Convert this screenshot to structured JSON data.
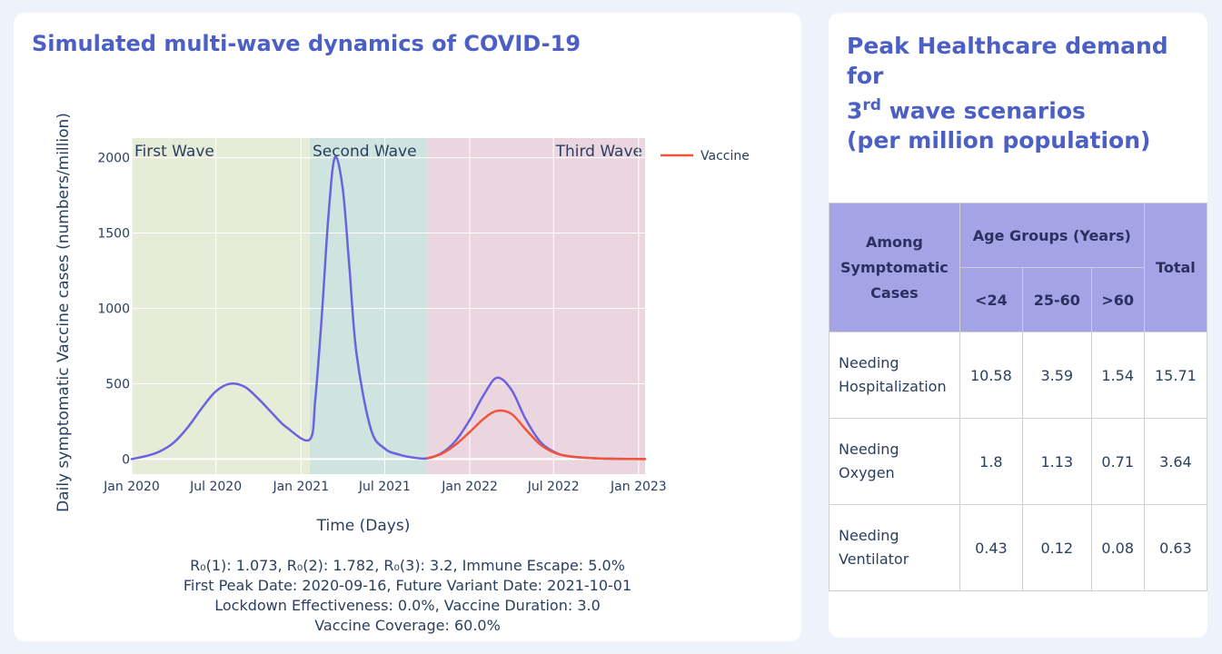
{
  "chart_panel": {
    "title": "Simulated multi-wave dynamics of COVID-19",
    "annotation_lines": [
      "R₀(1): 1.073, R₀(2): 1.782, R₀(3): 3.2, Immune Escape: 5.0%",
      "First Peak Date: 2020-09-16, Future Variant Date: 2021-10-01",
      "Lockdown Effectiveness: 0.0%, Vaccine Duration: 3.0",
      "Vaccine Coverage: 60.0%"
    ]
  },
  "chart_data": {
    "type": "line",
    "xlabel": "Time (Days)",
    "ylabel": "Daily symptomatic Vaccine cases (numbers/million)",
    "xlim": [
      "2020-01-01",
      "2023-01-15"
    ],
    "ylim": [
      -100,
      2130
    ],
    "y_ticks": [
      0,
      500,
      1000,
      1500,
      2000
    ],
    "x_ticks": [
      {
        "date": "2020-01-01",
        "label": "Jan 2020"
      },
      {
        "date": "2020-07-01",
        "label": "Jul 2020"
      },
      {
        "date": "2021-01-01",
        "label": "Jan 2021"
      },
      {
        "date": "2021-07-01",
        "label": "Jul 2021"
      },
      {
        "date": "2022-01-01",
        "label": "Jan 2022"
      },
      {
        "date": "2022-07-01",
        "label": "Jul 2022"
      },
      {
        "date": "2023-01-01",
        "label": "Jan 2023"
      }
    ],
    "grid": true,
    "legend_position": "top-right",
    "wave_regions": [
      {
        "label": "First Wave",
        "start": "2020-01-01",
        "end": "2021-01-20",
        "color": "#e6ecd8"
      },
      {
        "label": "Second Wave",
        "start": "2021-01-20",
        "end": "2021-10-01",
        "color": "#cfe3df"
      },
      {
        "label": "Third Wave",
        "start": "2021-10-01",
        "end": "2023-01-15",
        "color": "#ebd6df"
      }
    ],
    "series": [
      {
        "name": "",
        "color": "#6b62e0",
        "points": [
          [
            "2020-01-01",
            0
          ],
          [
            "2020-02-01",
            20
          ],
          [
            "2020-03-01",
            50
          ],
          [
            "2020-04-01",
            110
          ],
          [
            "2020-05-01",
            210
          ],
          [
            "2020-06-01",
            340
          ],
          [
            "2020-07-01",
            450
          ],
          [
            "2020-08-01",
            500
          ],
          [
            "2020-09-01",
            480
          ],
          [
            "2020-10-01",
            400
          ],
          [
            "2020-11-01",
            300
          ],
          [
            "2020-12-01",
            210
          ],
          [
            "2021-01-20",
            130
          ],
          [
            "2021-02-01",
            400
          ],
          [
            "2021-02-15",
            950
          ],
          [
            "2021-03-01",
            1600
          ],
          [
            "2021-03-15",
            2000
          ],
          [
            "2021-04-01",
            1800
          ],
          [
            "2021-04-15",
            1300
          ],
          [
            "2021-05-01",
            700
          ],
          [
            "2021-06-01",
            200
          ],
          [
            "2021-07-01",
            70
          ],
          [
            "2021-08-01",
            30
          ],
          [
            "2021-09-01",
            10
          ],
          [
            "2021-10-01",
            5
          ],
          [
            "2021-11-01",
            40
          ],
          [
            "2021-12-01",
            120
          ],
          [
            "2022-01-01",
            260
          ],
          [
            "2022-02-01",
            430
          ],
          [
            "2022-03-01",
            540
          ],
          [
            "2022-04-01",
            460
          ],
          [
            "2022-05-01",
            270
          ],
          [
            "2022-06-01",
            120
          ],
          [
            "2022-07-01",
            50
          ],
          [
            "2022-08-01",
            20
          ],
          [
            "2022-10-01",
            5
          ],
          [
            "2023-01-15",
            0
          ]
        ]
      },
      {
        "name": "Vaccine",
        "color": "#ef553b",
        "points": [
          [
            "2021-10-01",
            5
          ],
          [
            "2021-11-01",
            35
          ],
          [
            "2021-12-01",
            95
          ],
          [
            "2022-01-01",
            180
          ],
          [
            "2022-02-01",
            270
          ],
          [
            "2022-03-01",
            320
          ],
          [
            "2022-04-01",
            300
          ],
          [
            "2022-05-01",
            200
          ],
          [
            "2022-06-01",
            100
          ],
          [
            "2022-07-01",
            45
          ],
          [
            "2022-08-01",
            20
          ],
          [
            "2022-10-01",
            5
          ],
          [
            "2023-01-15",
            0
          ]
        ]
      }
    ]
  },
  "table_panel": {
    "title_line1": "Peak Healthcare demand for",
    "title_line2_num": "3",
    "title_line2_sup": "rd",
    "title_line2_rest": " wave scenarios",
    "title_line3": "(per million population)",
    "header_among": [
      "Among",
      "Symptomatic",
      "Cases"
    ],
    "header_age_groups": "Age Groups (Years)",
    "header_total": "Total",
    "age_columns": [
      "<24",
      "25-60",
      ">60"
    ],
    "rows": [
      {
        "label": [
          "Needing",
          "Hospitalization"
        ],
        "values": [
          "10.58",
          "3.59",
          "1.54",
          "15.71"
        ]
      },
      {
        "label": [
          "Needing",
          "Oxygen"
        ],
        "values": [
          "1.8",
          "1.13",
          "0.71",
          "3.64"
        ]
      },
      {
        "label": [
          "Needing",
          "Ventilator"
        ],
        "values": [
          "0.43",
          "0.12",
          "0.08",
          "0.63"
        ]
      }
    ]
  }
}
